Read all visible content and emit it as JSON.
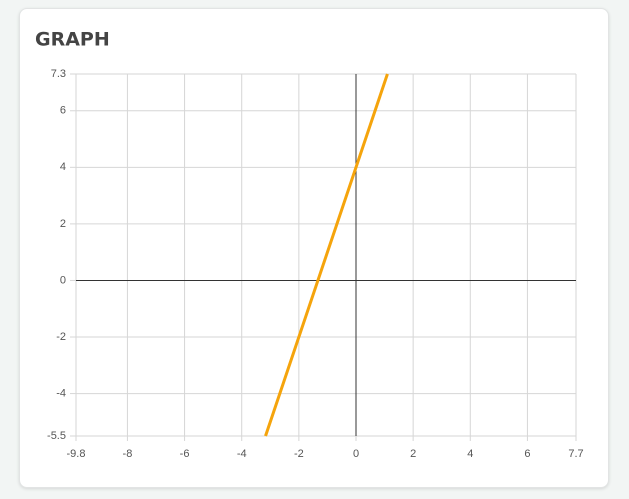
{
  "chart_data": {
    "type": "line",
    "title": "GRAPH",
    "x": [
      -3.1667,
      1.1
    ],
    "values": [
      -5.5,
      7.3
    ],
    "color": "#f5a40c",
    "xlim": [
      -9.8,
      7.7
    ],
    "xticks": [
      -9.8,
      -8,
      -6,
      -4,
      -2,
      0,
      2,
      4,
      6,
      7.7
    ],
    "ylim": [
      -5.5,
      7.3
    ],
    "yticks": [
      -5.5,
      -4,
      -2,
      0,
      2,
      4,
      6,
      7.3
    ],
    "grid": true
  }
}
